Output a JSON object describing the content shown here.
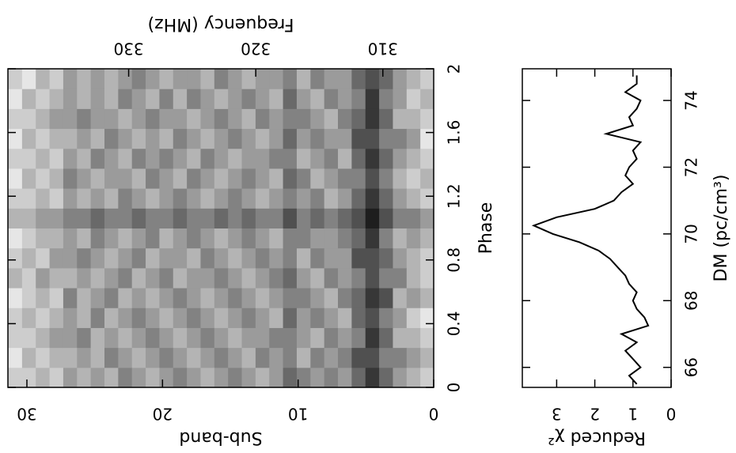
{
  "chart_data": [
    {
      "type": "heatmap",
      "x_label": "Sub-band",
      "y_label": "Phase",
      "x2_label": "Frequency (MHz)",
      "xlim": [
        0,
        31.4
      ],
      "xticks": [
        0,
        10,
        20,
        30
      ],
      "ylim": [
        0,
        2
      ],
      "yticks": [
        0,
        0.4,
        0.8,
        1.2,
        1.6,
        2
      ],
      "x2lim": [
        306.0,
        339.5
      ],
      "x2ticks": [
        310,
        320,
        330
      ],
      "values": [
        [
          2,
          3,
          2,
          1,
          3,
          2,
          2,
          3,
          4,
          2,
          3,
          2,
          1,
          2,
          3,
          2
        ],
        [
          3,
          4,
          3,
          2,
          4,
          3,
          3,
          4,
          5,
          3,
          2,
          3,
          4,
          3,
          2,
          3
        ],
        [
          4,
          5,
          3,
          4,
          3,
          5,
          4,
          3,
          5,
          4,
          3,
          4,
          5,
          3,
          4,
          4
        ],
        [
          6,
          5,
          6,
          5,
          7,
          5,
          6,
          5,
          7,
          6,
          5,
          6,
          5,
          6,
          5,
          6
        ],
        [
          8,
          7,
          8,
          7,
          8,
          7,
          7,
          8,
          9,
          8,
          7,
          8,
          7,
          8,
          8,
          7
        ],
        [
          6,
          7,
          5,
          6,
          6,
          5,
          7,
          6,
          7,
          6,
          5,
          6,
          7,
          6,
          5,
          6
        ],
        [
          4,
          5,
          4,
          3,
          5,
          4,
          4,
          5,
          6,
          4,
          5,
          3,
          4,
          5,
          4,
          4
        ],
        [
          5,
          4,
          5,
          4,
          3,
          5,
          4,
          4,
          5,
          3,
          4,
          5,
          4,
          3,
          5,
          4
        ],
        [
          4,
          5,
          3,
          5,
          4,
          3,
          5,
          4,
          6,
          5,
          3,
          4,
          5,
          4,
          3,
          5
        ],
        [
          5,
          3,
          4,
          4,
          5,
          4,
          3,
          5,
          5,
          4,
          5,
          3,
          4,
          5,
          4,
          3
        ],
        [
          6,
          5,
          5,
          6,
          5,
          6,
          5,
          5,
          7,
          5,
          6,
          5,
          6,
          5,
          6,
          5
        ],
        [
          4,
          4,
          5,
          3,
          4,
          5,
          4,
          3,
          5,
          4,
          3,
          5,
          4,
          4,
          3,
          4
        ],
        [
          3,
          5,
          4,
          4,
          3,
          4,
          5,
          4,
          5,
          3,
          4,
          4,
          3,
          5,
          4,
          4
        ],
        [
          4,
          3,
          4,
          5,
          4,
          3,
          4,
          5,
          6,
          4,
          5,
          4,
          4,
          3,
          5,
          3
        ],
        [
          5,
          4,
          3,
          4,
          5,
          4,
          3,
          4,
          5,
          5,
          4,
          3,
          5,
          4,
          4,
          4
        ],
        [
          4,
          5,
          4,
          3,
          4,
          5,
          4,
          3,
          6,
          4,
          3,
          4,
          4,
          5,
          3,
          5
        ],
        [
          3,
          4,
          5,
          4,
          3,
          4,
          5,
          4,
          5,
          3,
          4,
          5,
          3,
          4,
          4,
          3
        ],
        [
          4,
          3,
          4,
          5,
          4,
          4,
          3,
          5,
          5,
          4,
          5,
          3,
          4,
          3,
          5,
          4
        ],
        [
          5,
          4,
          3,
          4,
          5,
          3,
          4,
          4,
          6,
          5,
          3,
          4,
          5,
          4,
          3,
          4
        ],
        [
          4,
          5,
          4,
          3,
          4,
          5,
          4,
          3,
          5,
          4,
          4,
          5,
          3,
          4,
          5,
          3
        ],
        [
          3,
          4,
          5,
          4,
          3,
          4,
          3,
          5,
          5,
          3,
          5,
          4,
          4,
          5,
          3,
          4
        ],
        [
          4,
          3,
          4,
          5,
          4,
          3,
          5,
          4,
          6,
          4,
          3,
          5,
          3,
          4,
          4,
          5
        ],
        [
          5,
          4,
          3,
          4,
          3,
          5,
          4,
          3,
          5,
          5,
          4,
          3,
          4,
          3,
          5,
          4
        ],
        [
          3,
          5,
          4,
          3,
          5,
          4,
          3,
          4,
          5,
          3,
          4,
          4,
          5,
          4,
          3,
          3
        ],
        [
          4,
          3,
          3,
          5,
          4,
          3,
          4,
          5,
          6,
          4,
          3,
          5,
          3,
          4,
          4,
          4
        ],
        [
          3,
          4,
          5,
          3,
          3,
          4,
          5,
          3,
          5,
          3,
          4,
          3,
          4,
          5,
          3,
          3
        ],
        [
          4,
          3,
          4,
          4,
          5,
          3,
          4,
          4,
          5,
          4,
          5,
          4,
          3,
          4,
          4,
          4
        ],
        [
          2,
          3,
          4,
          3,
          2,
          3,
          4,
          3,
          4,
          2,
          3,
          2,
          3,
          4,
          3,
          2
        ],
        [
          3,
          2,
          3,
          2,
          3,
          4,
          2,
          3,
          4,
          3,
          2,
          3,
          2,
          3,
          2,
          3
        ],
        [
          2,
          3,
          2,
          3,
          2,
          2,
          3,
          2,
          3,
          2,
          3,
          2,
          3,
          2,
          3,
          1
        ],
        [
          2,
          1,
          2,
          2,
          1,
          3,
          2,
          1,
          3,
          2,
          1,
          2,
          1,
          2,
          1,
          2
        ]
      ]
    },
    {
      "type": "line",
      "x_label": "DM (pc/cm³)",
      "y_label": "Reduced χ²",
      "color": "#000000",
      "xlim": [
        65.4,
        74.95
      ],
      "xticks": [
        66,
        68,
        70,
        72,
        74
      ],
      "ylim": [
        0,
        3.9
      ],
      "yticks": [
        0,
        1,
        2,
        3
      ],
      "x": [
        65.5,
        65.75,
        66,
        66.25,
        66.5,
        66.75,
        67,
        67.25,
        67.5,
        67.75,
        68,
        68.25,
        68.5,
        68.75,
        69,
        69.25,
        69.5,
        69.75,
        70,
        70.25,
        70.5,
        70.75,
        71,
        71.25,
        71.5,
        71.75,
        72,
        72.25,
        72.5,
        72.75,
        73,
        73.25,
        73.5,
        73.75,
        74,
        74.25,
        74.5,
        74.75
      ],
      "values": [
        0.9,
        1.1,
        0.8,
        1.0,
        1.2,
        0.9,
        1.3,
        0.6,
        0.7,
        0.9,
        1.0,
        0.9,
        1.1,
        1.2,
        1.4,
        1.6,
        1.9,
        2.4,
        3.1,
        3.6,
        3.0,
        2.0,
        1.5,
        1.3,
        1.0,
        1.2,
        1.1,
        0.9,
        1.0,
        0.8,
        1.7,
        1.0,
        1.1,
        0.9,
        0.8,
        1.2,
        0.9,
        0.9
      ]
    }
  ]
}
